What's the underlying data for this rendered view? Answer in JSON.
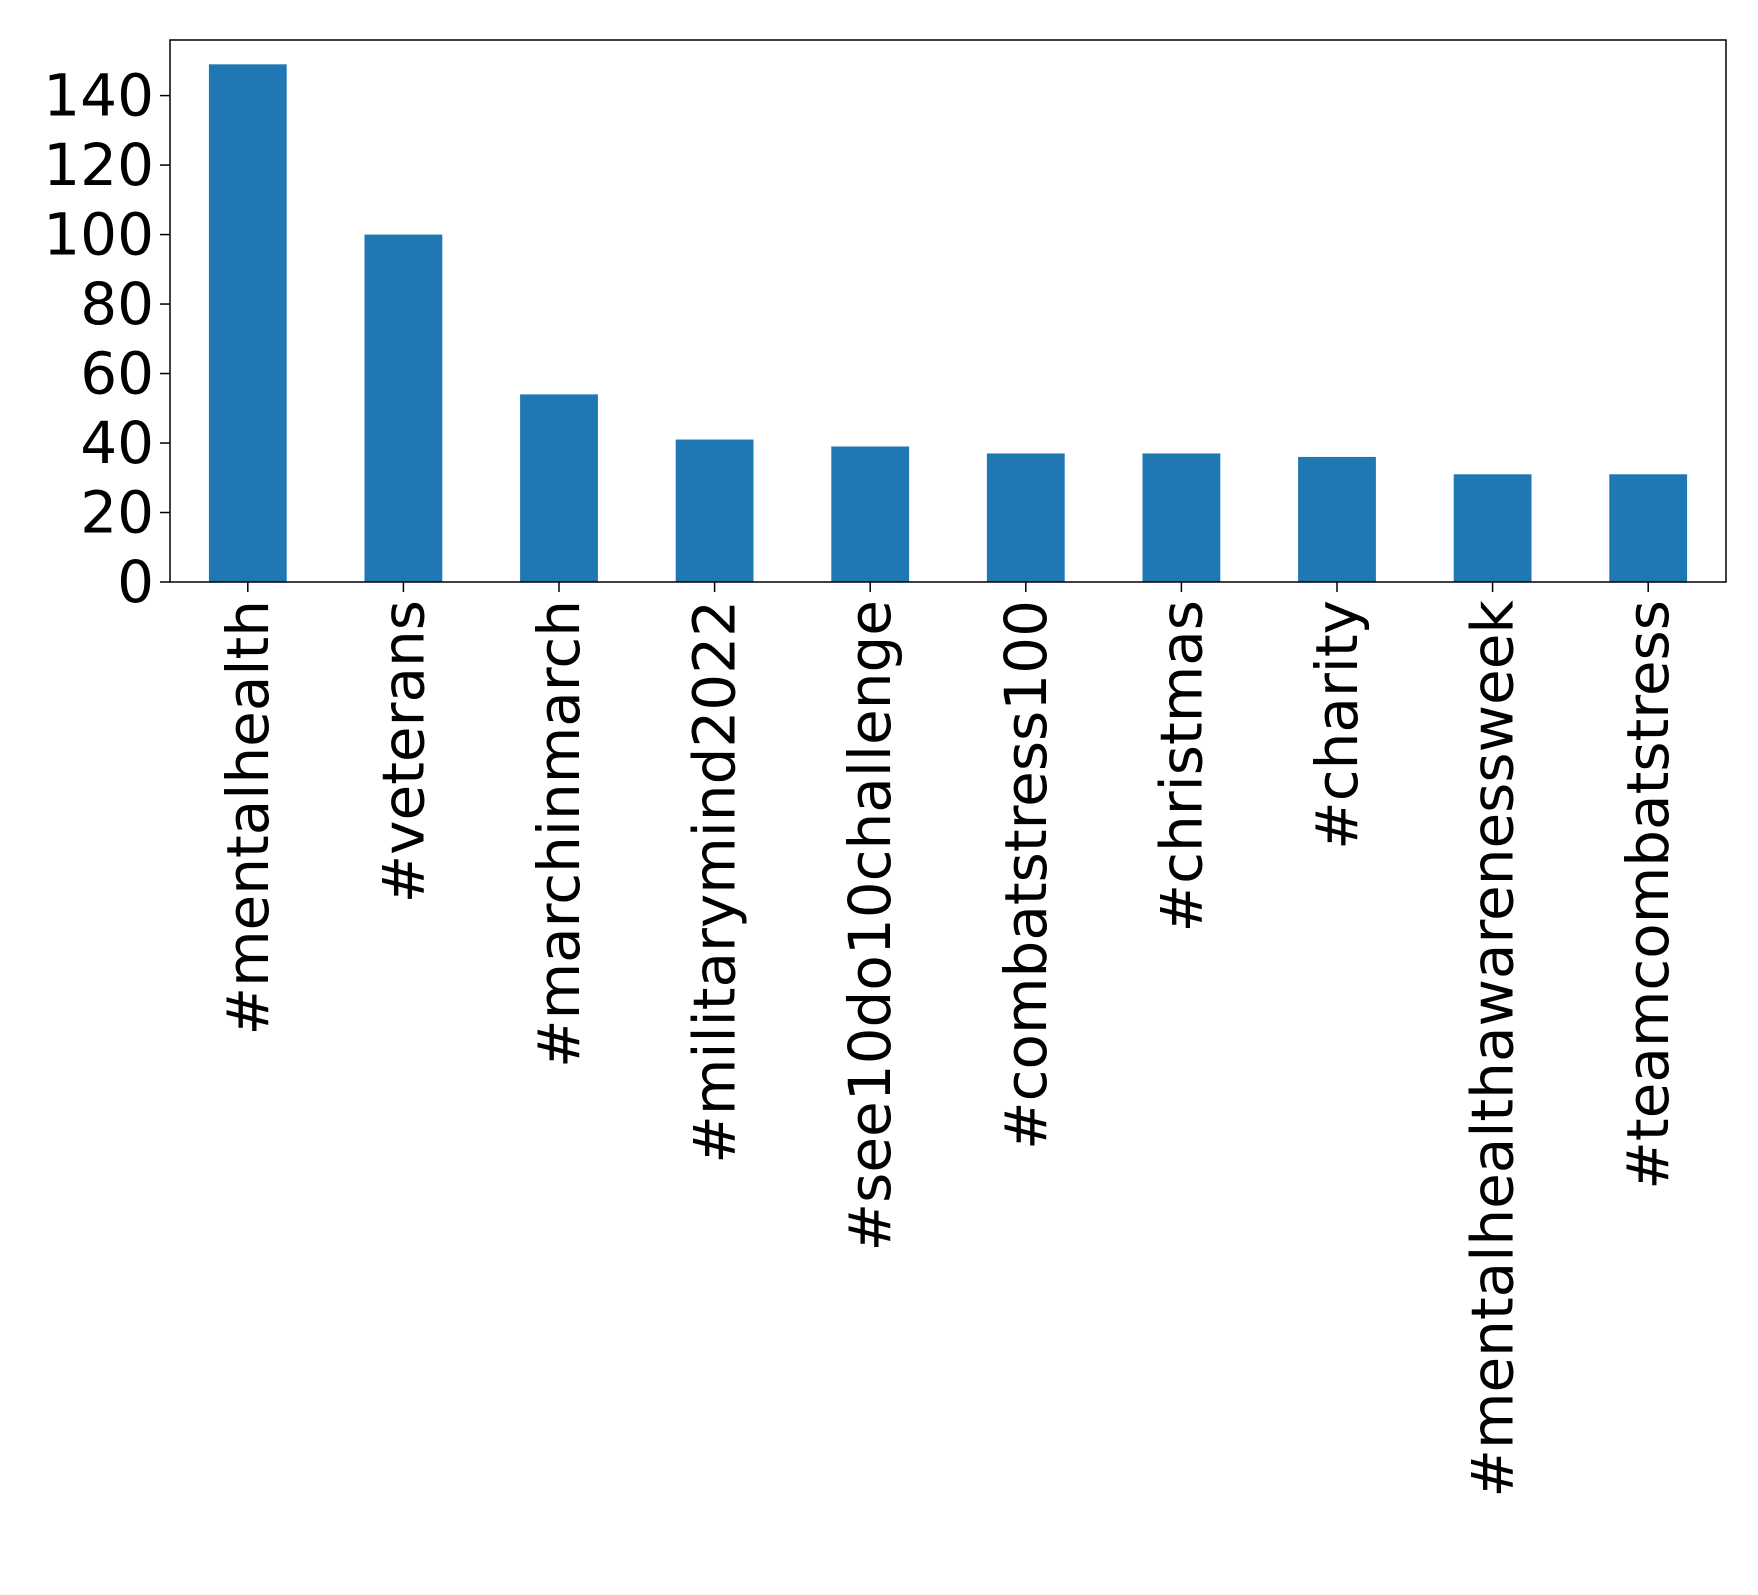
{
  "chart_data": {
    "type": "bar",
    "title": "",
    "xlabel": "",
    "ylabel": "",
    "categories": [
      "#mentalhealth",
      "#veterans",
      "#marchinmarch",
      "#militarymind2022",
      "#see10do10challenge",
      "#combatstress100",
      "#christmas",
      "#charity",
      "#mentalhealthawarenessweek",
      "#teamcombatstress"
    ],
    "values": [
      149,
      100,
      54,
      41,
      39,
      37,
      37,
      36,
      31,
      31
    ],
    "ylim": [
      0,
      156
    ],
    "yticks": [
      0,
      20,
      40,
      60,
      80,
      100,
      120,
      140
    ],
    "ytick_labels": [
      "0",
      "20",
      "40",
      "60",
      "80",
      "100",
      "120",
      "140"
    ],
    "grid": false,
    "legend": "none",
    "bar_color": "#1f77b4"
  }
}
